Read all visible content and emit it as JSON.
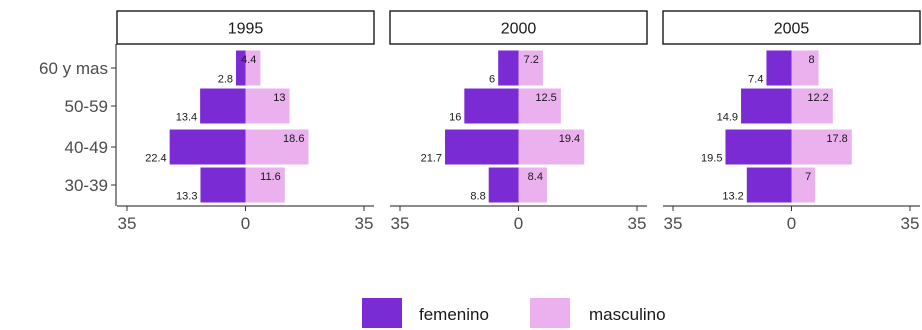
{
  "chart_data": {
    "type": "bar",
    "orientation": "horizontal",
    "subtype": "population-pyramid",
    "facets": [
      "1995",
      "2000",
      "2005"
    ],
    "categories": [
      "60 y mas",
      "50-59",
      "40-49",
      "30-39"
    ],
    "xlim": [
      -35,
      35
    ],
    "x_ticks": [
      -35,
      0,
      35
    ],
    "x_tick_labels": [
      "35",
      "0",
      "35"
    ],
    "series": [
      {
        "name": "femenino",
        "color": "#7b2bd4",
        "side": "left",
        "values": {
          "1995": [
            2.8,
            13.4,
            22.4,
            13.3
          ],
          "2000": [
            6,
            16,
            21.7,
            8.8
          ],
          "2005": [
            7.4,
            14.9,
            19.5,
            13.2
          ]
        }
      },
      {
        "name": "masculino",
        "color": "#eab1ee",
        "side": "right",
        "values": {
          "1995": [
            4.4,
            13,
            18.6,
            11.6
          ],
          "2000": [
            7.2,
            12.5,
            19.4,
            8.4
          ],
          "2005": [
            8,
            12.2,
            17.8,
            7
          ]
        }
      }
    ],
    "legend": {
      "position": "bottom",
      "items": [
        "femenino",
        "masculino"
      ]
    },
    "grid": false,
    "theme": "ggplot2 classic with facet strips"
  }
}
